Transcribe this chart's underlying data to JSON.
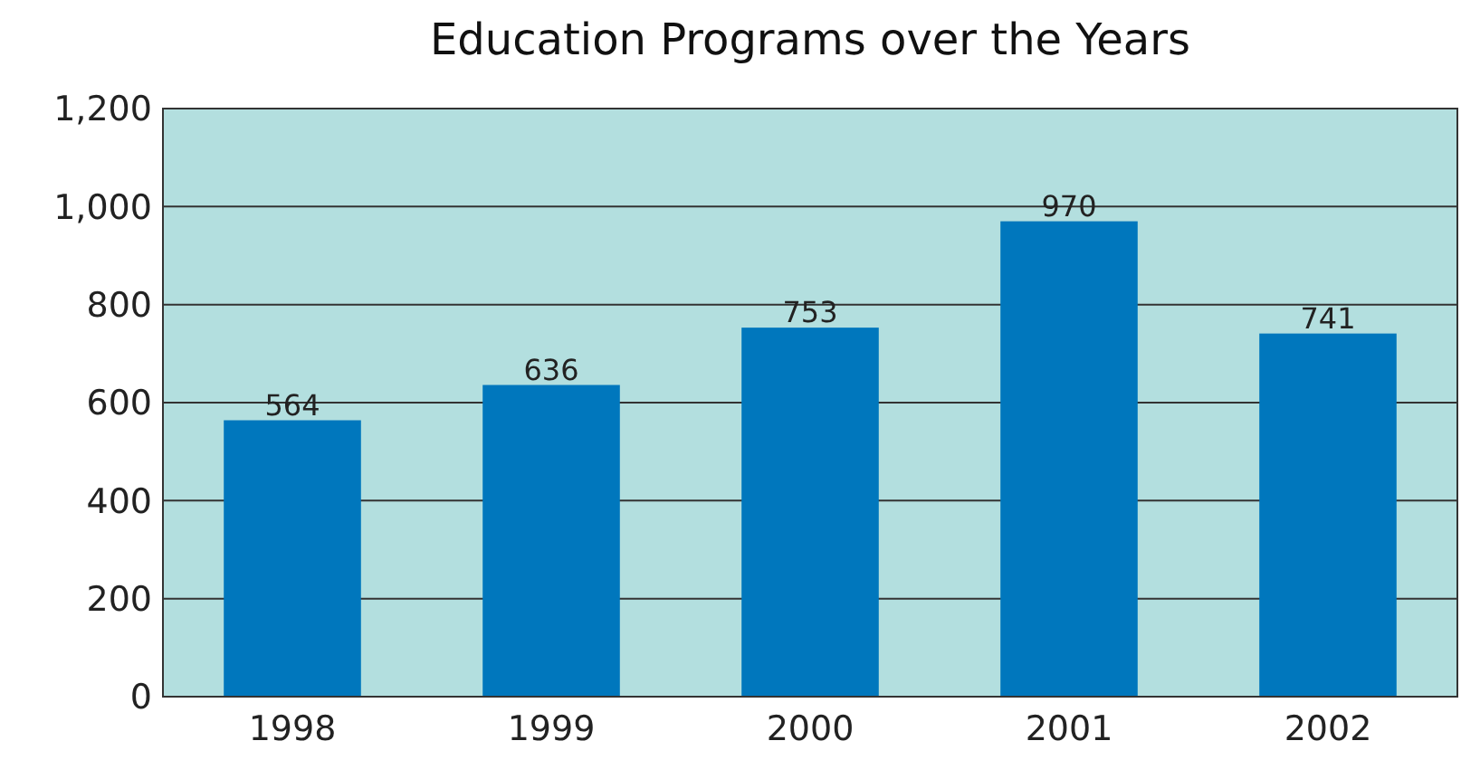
{
  "chart_data": {
    "type": "bar",
    "title": "Education Programs over the Years",
    "categories": [
      "1998",
      "1999",
      "2000",
      "2001",
      "2002"
    ],
    "values": [
      564,
      636,
      753,
      970,
      741
    ],
    "color": "#0077bd",
    "ylim": [
      0,
      1200
    ],
    "yticks": [
      0,
      {
        "value": 200,
        "label": "200"
      },
      {
        "value": 400,
        "label": "400"
      },
      {
        "value": 600,
        "label": "600"
      },
      {
        "value": 800,
        "label": "800"
      },
      {
        "value": 1000,
        "label": "1,000"
      },
      {
        "value": 1200,
        "label": "1,200"
      }
    ],
    "grid": true,
    "data_labels": true
  }
}
